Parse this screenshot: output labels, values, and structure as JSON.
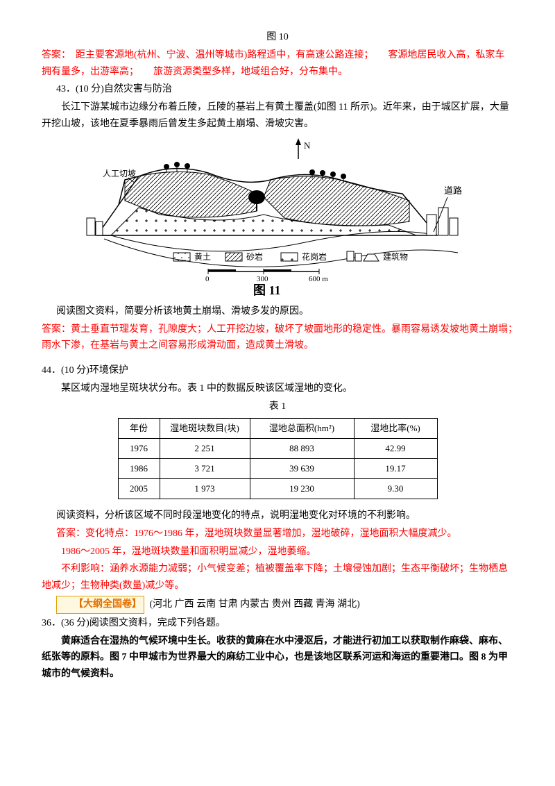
{
  "fig10_caption": "图 10",
  "answer42": "答案：　距主要客源地(杭州、宁波、温州等城市)路程适中，有高速公路连接；　　客源地居民收入高，私家车拥有量多，出游率高；　　旅游资源类型多样，地域组合好，分布集中。",
  "q43": {
    "num": "43．(10 分)自然灾害与防治",
    "stem1": "长江下游某城市边缘分布着丘陵，丘陵的基岩上有黄土覆盖(如图 11 所示)。近年来，由于城区扩展，大量开挖山坡，该地在夏季暴雨后曾发生多起黄土崩塌、滑坡灾害。",
    "prompt": "阅读图文资料，简要分析该地黄土崩塌、滑坡多发的原因。",
    "answer": "答案：黄土垂直节理发育，孔隙度大；人工开挖边坡，破坏了坡面地形的稳定性。暴雨容易诱发坡地黄土崩塌；　　雨水下渗，在基岩与黄土之间容易形成滑动面，造成黄土滑坡。"
  },
  "fig11": {
    "labels": {
      "n": "N",
      "slope": "人工切坡",
      "loess": "黄土",
      "sandstone": "砂岩",
      "granite": "花岗岩",
      "building": "建筑物",
      "road": "道路",
      "caption": "图 11",
      "s0": "0",
      "s300": "300",
      "s600": "600 m"
    },
    "colors": {
      "line": "#000000",
      "bg": "#ffffff"
    }
  },
  "q44": {
    "num": "44．(10 分)环境保护",
    "stem": "某区域内湿地呈斑块状分布。表 1 中的数据反映该区域湿地的变化。",
    "table_caption": "表 1",
    "table": {
      "columns": [
        "年份",
        "湿地斑块数目(块)",
        "湿地总面积(hm²)",
        "湿地比率(%)"
      ],
      "rows": [
        [
          "1976",
          "2 251",
          "88 893",
          "42.99"
        ],
        [
          "1986",
          "3 721",
          "39 639",
          "19.17"
        ],
        [
          "2005",
          "1 973",
          "19 230",
          "9.30"
        ]
      ],
      "col_widths": [
        "60px",
        "130px",
        "150px",
        "120px"
      ]
    },
    "prompt": "阅读资料，分析该区域不同时段湿地变化的特点，说明湿地变化对环境的不利影响。",
    "ans1": "答案：变化特点：1976～1986 年，湿地斑块数量显著增加，湿地破碎，湿地面积大幅度减少。",
    "ans2": "1986～2005 年，湿地斑块数量和面积明显减少，湿地萎缩。",
    "ans3": "不利影响：涵养水源能力减弱；小气候变差；植被覆盖率下降；土壤侵蚀加剧；生态平衡破坏；生物栖息地减少；生物种类(数量)减少等。"
  },
  "dagang": {
    "tag": "【大纲全国卷】",
    "provinces": "(河北 广西 云南 甘肃 内蒙古 贵州 西藏 青海 湖北)"
  },
  "q36": {
    "num": "36．(36 分)阅读图文资料，完成下列各题。",
    "stem": "黄麻适合在湿热的气候环境中生长。收获的黄麻在水中浸沤后，才能进行初加工以获取制作麻袋、麻布、纸张等的原料。图 7 中甲城市为世界最大的麻纺工业中心，也是该地区联系河运和海运的重要港口。图 8 为甲城市的气候资料。"
  }
}
